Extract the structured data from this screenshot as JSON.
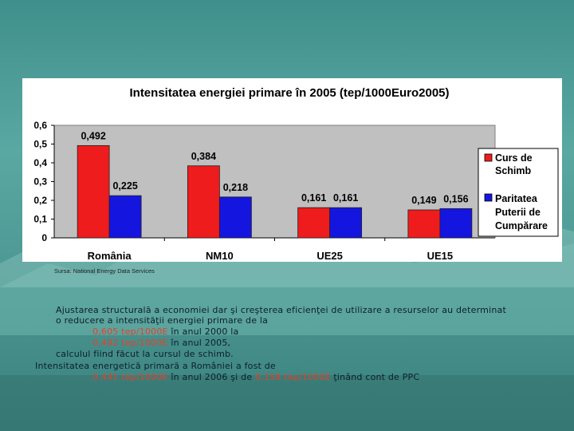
{
  "chart_data": {
    "type": "bar",
    "title": "Intensitatea energiei primare în 2005 (tep/1000Euro2005)",
    "categories": [
      "România",
      "NM10",
      "UE25",
      "UE15"
    ],
    "series": [
      {
        "name": "Curs de Schimb",
        "values": [
          0.492,
          0.384,
          0.161,
          0.149
        ],
        "labels": [
          "0,492",
          "0,384",
          "0,161",
          "0,149"
        ]
      },
      {
        "name": "Paritatea Puterii de Cumpărare",
        "values": [
          0.225,
          0.218,
          0.161,
          0.156
        ],
        "labels": [
          "0,225",
          "0,218",
          "0,161",
          "0,156"
        ]
      }
    ],
    "yticks": [
      "0",
      "0,1",
      "0,2",
      "0,3",
      "0,4",
      "0,5",
      "0,6"
    ],
    "ylim": [
      0,
      0.6
    ],
    "legend": [
      {
        "lines": [
          "Curs de",
          "Schimb"
        ]
      },
      {
        "lines": [
          "Paritatea",
          "Puterii de",
          "Cumpărare"
        ]
      }
    ],
    "legend_position": "right",
    "colors": {
      "series1": "#ee1c1c",
      "series2": "#1515e0",
      "plot_bg": "#c0c0c0"
    }
  },
  "source": "Sursa: National Energy Data Services",
  "text": {
    "line1": "Ajustarea structurală a economiei dar şi creşterea eficienţei de utilizare a resurselor au determinat",
    "line2": "o reducere a intensităţii energiei primare de la",
    "line3_hl": "0,605 tep/1000E",
    "line3_rest": " în anul 2000 la",
    "line4_hl": "0,492 tep/1000E",
    "line4_rest": " în anul 2005,",
    "line5": "calculul fiind făcut la cursul de schimb.",
    "line6": "Intensitatea energetică primară a României a fost de",
    "line7_hl1": "0,441 tep/1000E",
    "line7_mid": " în anul 2006 şi de ",
    "line7_hl2": "0,158 tep/1000E",
    "line7_rest": " ţinând cont de PPC"
  }
}
